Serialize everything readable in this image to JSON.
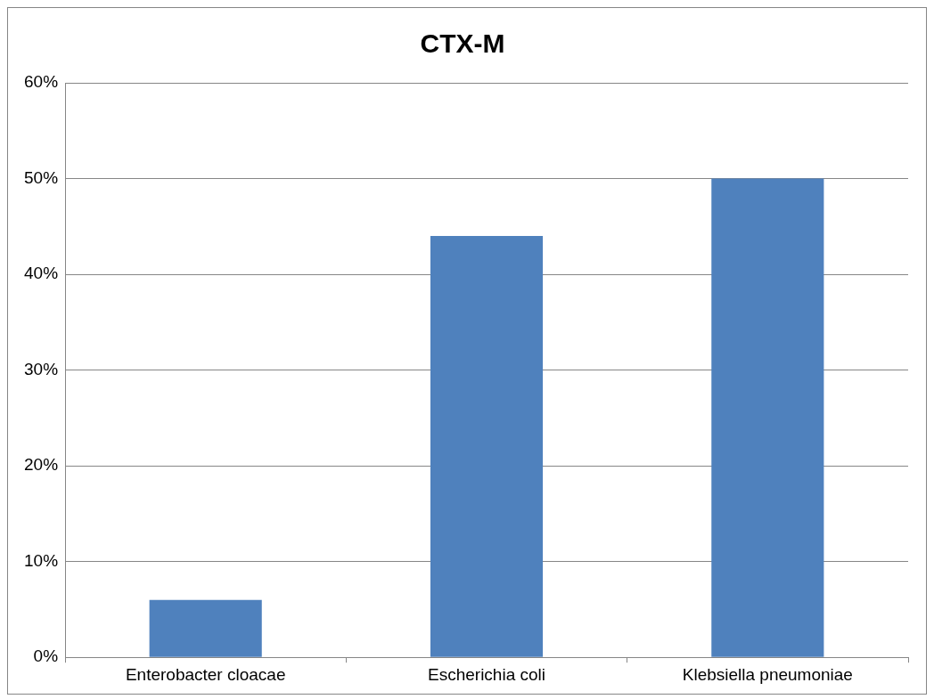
{
  "chart_data": {
    "type": "bar",
    "title": "CTX-M",
    "categories": [
      "Enterobacter cloacae",
      "Escherichia coli",
      "Klebsiella pneumoniae"
    ],
    "values": [
      6,
      44,
      50
    ],
    "color": "#4f81bd",
    "ylim": [
      0,
      60
    ],
    "yticks": [
      {
        "value": 0,
        "label": "0%"
      },
      {
        "value": 10,
        "label": "10%"
      },
      {
        "value": 20,
        "label": "20%"
      },
      {
        "value": 30,
        "label": "30%"
      },
      {
        "value": 40,
        "label": "40%"
      },
      {
        "value": 50,
        "label": "50%"
      },
      {
        "value": 60,
        "label": "60%"
      }
    ],
    "grid": "y",
    "legend": false
  }
}
